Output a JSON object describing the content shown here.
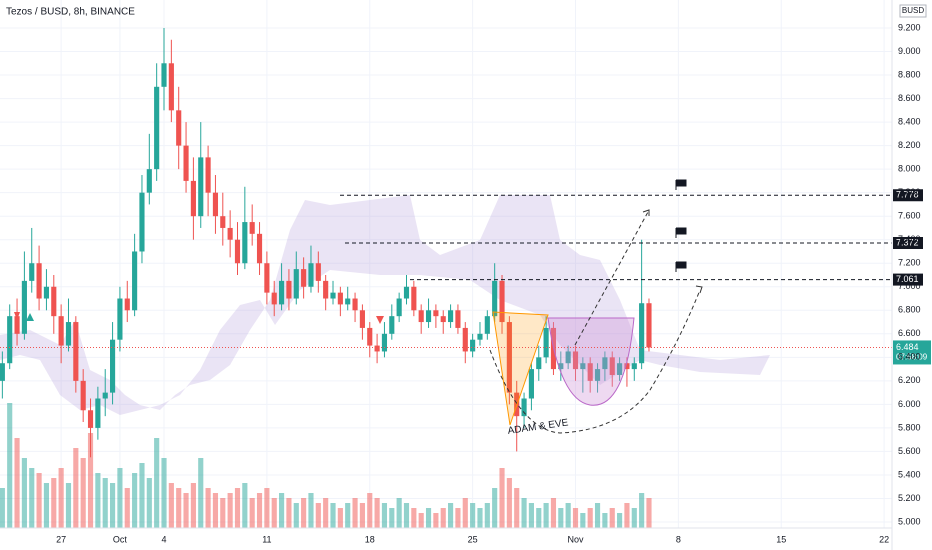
{
  "chart_data": {
    "type": "candlestick",
    "title": "Tezos / BUSD, 8h, BINANCE",
    "y_axis_label": "BUSD",
    "up_color": "#26a69a",
    "down_color": "#ef5350",
    "xlim": [
      -7.16,
      53.4
    ],
    "xticks": [
      {
        "value": -3,
        "label": "27"
      },
      {
        "value": 1,
        "label": "Oct"
      },
      4,
      11,
      18,
      25,
      {
        "value": 32,
        "label": "Nov"
      },
      {
        "value": 39,
        "label": "8"
      },
      {
        "value": 46,
        "label": "15"
      },
      {
        "value": 53,
        "label": "22"
      }
    ],
    "ylim": [
      4.762,
      9.438
    ],
    "yticks": [
      {
        "value": 5,
        "label": "5.000"
      },
      {
        "value": 5.2,
        "label": "5.200"
      },
      {
        "value": 5.4,
        "label": "5.400"
      },
      {
        "value": 5.6,
        "label": "5.600"
      },
      {
        "value": 5.8,
        "label": "5.800"
      },
      {
        "value": 6,
        "label": "6.000"
      },
      {
        "value": 6.2,
        "label": "6.200"
      },
      {
        "value": 6.4,
        "label": "6.400"
      },
      {
        "value": 6.6,
        "label": "6.600"
      },
      {
        "value": 6.8,
        "label": "6.800"
      },
      {
        "value": 7,
        "label": "7.000"
      },
      {
        "value": 7.2,
        "label": "7.200"
      },
      {
        "value": 7.4,
        "label": "7.400"
      },
      {
        "value": 7.6,
        "label": "7.600"
      },
      {
        "value": 7.8,
        "label": "7.800"
      },
      {
        "value": 8,
        "label": "8.000"
      },
      {
        "value": 8.2,
        "label": "8.200"
      },
      {
        "value": 8.4,
        "label": "8.400"
      },
      {
        "value": 8.6,
        "label": "8.600"
      },
      {
        "value": 8.8,
        "label": "8.800"
      },
      {
        "value": 9,
        "label": "9.000"
      },
      {
        "value": 9.2,
        "label": "9.200"
      }
    ],
    "grid": true,
    "candles": [
      [
        -7,
        6.2,
        6.45,
        6.05,
        6.35
      ],
      [
        -6.5,
        6.35,
        6.85,
        6.3,
        6.75
      ],
      [
        -6,
        6.75,
        6.9,
        6.5,
        6.6
      ],
      [
        -5.5,
        6.6,
        7.3,
        6.55,
        7.05
      ],
      [
        -5,
        7.05,
        7.5,
        6.95,
        7.2
      ],
      [
        -4.5,
        7.2,
        7.35,
        6.8,
        6.9
      ],
      [
        -4,
        6.9,
        7.15,
        6.8,
        7.0
      ],
      [
        -3.5,
        7.0,
        7.1,
        6.6,
        6.75
      ],
      [
        -3,
        6.75,
        6.85,
        6.35,
        6.5
      ],
      [
        -2.5,
        6.5,
        6.9,
        6.45,
        6.7
      ],
      [
        -2,
        6.7,
        6.75,
        6.1,
        6.2
      ],
      [
        -1.5,
        6.2,
        6.3,
        5.85,
        5.95
      ],
      [
        -1,
        5.95,
        6.05,
        5.55,
        5.8
      ],
      [
        -0.5,
        5.8,
        6.15,
        5.7,
        6.05
      ],
      [
        0,
        6.05,
        6.3,
        5.9,
        6.1
      ],
      [
        0.5,
        6.1,
        6.7,
        6.0,
        6.55
      ],
      [
        1,
        6.55,
        7.0,
        6.45,
        6.9
      ],
      [
        1.5,
        6.9,
        7.05,
        6.7,
        6.8
      ],
      [
        2,
        6.8,
        7.45,
        6.75,
        7.3
      ],
      [
        2.5,
        7.3,
        7.95,
        7.2,
        7.8
      ],
      [
        3,
        7.8,
        8.3,
        7.7,
        8.0
      ],
      [
        3.5,
        8.0,
        8.9,
        7.9,
        8.7
      ],
      [
        4,
        8.7,
        9.2,
        8.5,
        8.9
      ],
      [
        4.5,
        8.9,
        9.1,
        8.4,
        8.5
      ],
      [
        5,
        8.5,
        8.7,
        8.0,
        8.2
      ],
      [
        5.5,
        8.2,
        8.4,
        7.8,
        7.9
      ],
      [
        6,
        7.9,
        8.1,
        7.4,
        7.6
      ],
      [
        6.5,
        7.6,
        8.4,
        7.5,
        8.1
      ],
      [
        7,
        8.1,
        8.2,
        7.6,
        7.8
      ],
      [
        7.5,
        7.8,
        7.95,
        7.45,
        7.6
      ],
      [
        8,
        7.6,
        7.8,
        7.35,
        7.5
      ],
      [
        8.5,
        7.5,
        7.65,
        7.25,
        7.4
      ],
      [
        9,
        7.4,
        7.55,
        7.1,
        7.2
      ],
      [
        9.5,
        7.2,
        7.85,
        7.15,
        7.55
      ],
      [
        10,
        7.55,
        7.7,
        7.35,
        7.45
      ],
      [
        10.5,
        7.45,
        7.55,
        7.1,
        7.2
      ],
      [
        11,
        7.2,
        7.3,
        6.85,
        6.95
      ],
      [
        11.5,
        6.95,
        7.05,
        6.75,
        6.85
      ],
      [
        12,
        6.85,
        7.2,
        6.8,
        7.05
      ],
      [
        12.5,
        7.05,
        7.15,
        6.8,
        6.9
      ],
      [
        13,
        6.9,
        7.3,
        6.85,
        7.15
      ],
      [
        13.5,
        7.15,
        7.25,
        6.9,
        7.0
      ],
      [
        14,
        7.0,
        7.35,
        6.95,
        7.2
      ],
      [
        14.5,
        7.2,
        7.3,
        6.95,
        7.05
      ],
      [
        15,
        7.05,
        7.1,
        6.8,
        6.9
      ],
      [
        15.5,
        6.9,
        7.05,
        6.85,
        6.95
      ],
      [
        16,
        6.95,
        7.0,
        6.75,
        6.85
      ],
      [
        16.5,
        6.85,
        7.0,
        6.8,
        6.9
      ],
      [
        17,
        6.9,
        6.95,
        6.7,
        6.8
      ],
      [
        17.5,
        6.8,
        6.85,
        6.55,
        6.65
      ],
      [
        18,
        6.65,
        6.7,
        6.4,
        6.5
      ],
      [
        18.5,
        6.5,
        6.6,
        6.35,
        6.45
      ],
      [
        19,
        6.45,
        6.7,
        6.4,
        6.6
      ],
      [
        19.5,
        6.6,
        6.85,
        6.55,
        6.75
      ],
      [
        20,
        6.75,
        6.95,
        6.7,
        6.9
      ],
      [
        20.5,
        6.9,
        7.1,
        6.85,
        7.0
      ],
      [
        21,
        7.0,
        7.05,
        6.75,
        6.8
      ],
      [
        21.5,
        6.8,
        6.85,
        6.6,
        6.7
      ],
      [
        22,
        6.7,
        6.9,
        6.65,
        6.8
      ],
      [
        22.5,
        6.8,
        6.85,
        6.65,
        6.75
      ],
      [
        23,
        6.75,
        6.8,
        6.6,
        6.7
      ],
      [
        23.5,
        6.7,
        6.85,
        6.65,
        6.8
      ],
      [
        24,
        6.8,
        6.85,
        6.6,
        6.65
      ],
      [
        24.5,
        6.65,
        6.7,
        6.35,
        6.45
      ],
      [
        25,
        6.45,
        6.6,
        6.4,
        6.55
      ],
      [
        25.5,
        6.55,
        6.7,
        6.5,
        6.6
      ],
      [
        26,
        6.6,
        6.8,
        6.55,
        6.75
      ],
      [
        26.5,
        6.75,
        7.2,
        6.7,
        7.05
      ],
      [
        27,
        7.05,
        7.1,
        6.6,
        6.7
      ],
      [
        27.5,
        6.7,
        6.75,
        6.0,
        6.1
      ],
      [
        28,
        6.1,
        6.2,
        5.6,
        5.9
      ],
      [
        28.5,
        5.9,
        6.1,
        5.8,
        6.05
      ],
      [
        29,
        6.05,
        6.35,
        5.95,
        6.3
      ],
      [
        29.5,
        6.3,
        6.5,
        6.2,
        6.4
      ],
      [
        30,
        6.4,
        6.75,
        6.35,
        6.65
      ],
      [
        30.5,
        6.65,
        6.7,
        6.25,
        6.3
      ],
      [
        31,
        6.3,
        6.45,
        6.2,
        6.35
      ],
      [
        31.5,
        6.35,
        6.5,
        6.3,
        6.45
      ],
      [
        32,
        6.45,
        6.5,
        6.2,
        6.3
      ],
      [
        32.5,
        6.3,
        6.4,
        6.1,
        6.35
      ],
      [
        33,
        6.35,
        6.4,
        6.1,
        6.2
      ],
      [
        33.5,
        6.2,
        6.35,
        6.1,
        6.3
      ],
      [
        34,
        6.3,
        6.45,
        6.2,
        6.4
      ],
      [
        34.5,
        6.4,
        6.45,
        6.15,
        6.25
      ],
      [
        35,
        6.25,
        6.4,
        6.2,
        6.35
      ],
      [
        35.5,
        6.35,
        6.4,
        6.15,
        6.3
      ],
      [
        36,
        6.3,
        6.4,
        6.2,
        6.35
      ],
      [
        36.5,
        6.35,
        7.4,
        6.3,
        6.86
      ],
      [
        37,
        6.86,
        6.9,
        6.45,
        6.484
      ]
    ],
    "volume": [
      40,
      125,
      90,
      70,
      60,
      55,
      45,
      50,
      60,
      45,
      80,
      70,
      95,
      55,
      50,
      45,
      60,
      40,
      55,
      65,
      50,
      90,
      70,
      45,
      40,
      35,
      45,
      70,
      40,
      35,
      30,
      35,
      40,
      45,
      30,
      35,
      40,
      30,
      35,
      30,
      25,
      30,
      35,
      25,
      30,
      25,
      20,
      25,
      30,
      25,
      35,
      30,
      25,
      20,
      30,
      25,
      20,
      15,
      20,
      15,
      20,
      25,
      20,
      30,
      25,
      20,
      25,
      40,
      60,
      50,
      40,
      30,
      25,
      20,
      25,
      30,
      20,
      25,
      20,
      15,
      20,
      25,
      15,
      20,
      15,
      25,
      20,
      35,
      30
    ],
    "levels": [
      7.778,
      7.372,
      7.061
    ],
    "last_price": 6.484,
    "last_price_label": "6.484",
    "countdown": "07:58:09",
    "annotation": "ADAM & EVE"
  }
}
